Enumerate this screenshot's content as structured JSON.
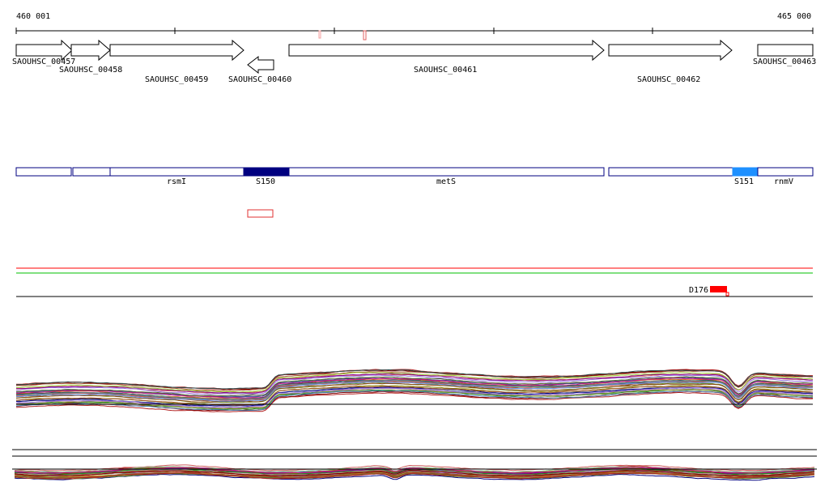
{
  "ruler": {
    "start_label": "460 001",
    "end_label": "465 000"
  },
  "genes": [
    {
      "id": "SAOUHSC_00457",
      "strand": "+"
    },
    {
      "id": "SAOUHSC_00458",
      "strand": "+"
    },
    {
      "id": "SAOUHSC_00459",
      "strand": "+"
    },
    {
      "id": "SAOUHSC_00460",
      "strand": "-"
    },
    {
      "id": "SAOUHSC_00461",
      "strand": "+"
    },
    {
      "id": "SAOUHSC_00462",
      "strand": "+"
    },
    {
      "id": "SAOUHSC_00463",
      "strand": "+"
    }
  ],
  "annotation_track": {
    "labels": {
      "rsmI": "rsmI",
      "s150": "S150",
      "metS": "metS",
      "s151": "S151",
      "rnmV": "rnmV"
    }
  },
  "feature_label": "D176",
  "colors": {
    "track_border": "#000080",
    "s150_fill": "#000080",
    "s151_fill": "#1e90ff",
    "red": "#ff0000",
    "green": "#00c000",
    "black": "#000000",
    "pink": "#f4a0a0"
  }
}
